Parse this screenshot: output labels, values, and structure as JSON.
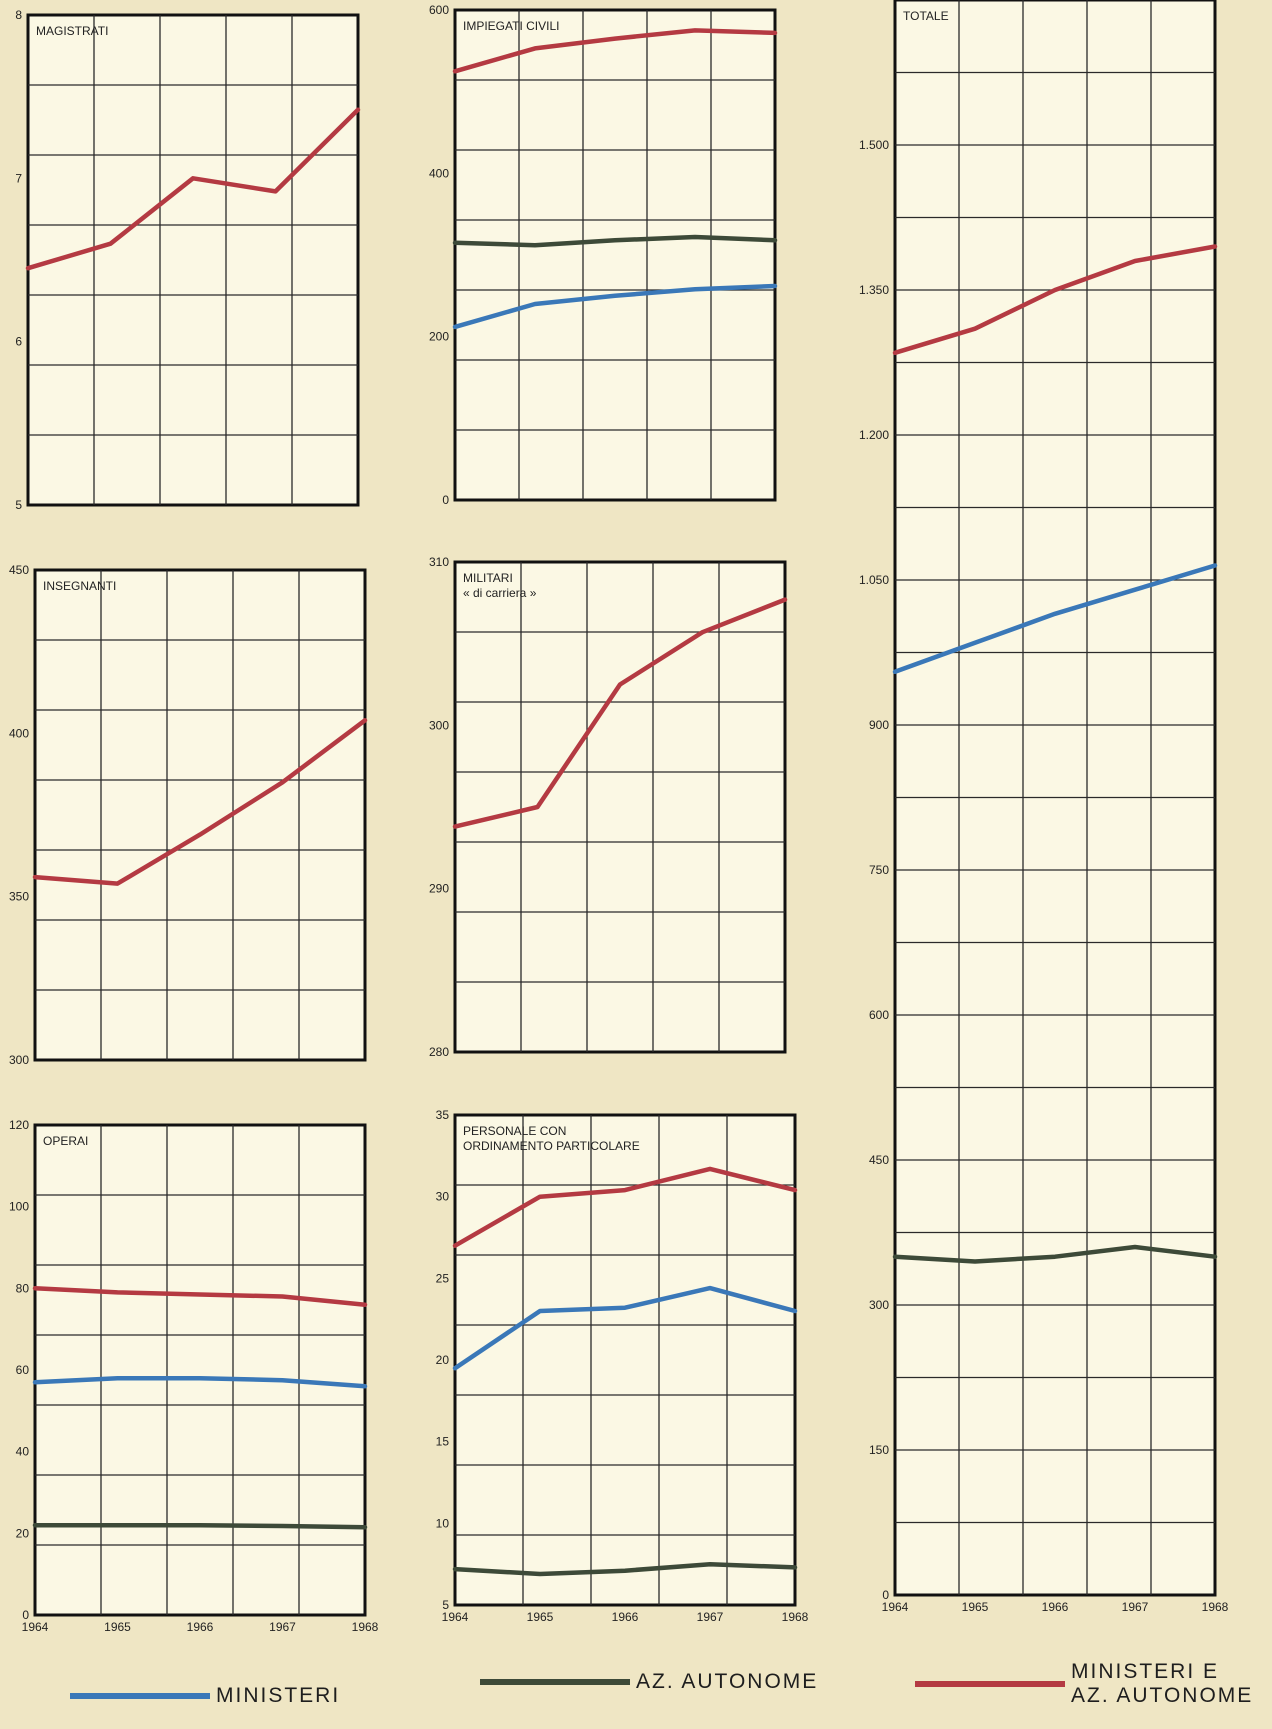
{
  "colors": {
    "background": "#efe6c4",
    "panel": "#fbf8e4",
    "grid": "#2a2a2a",
    "ministeri": "#3a78b8",
    "az_autonome": "#3d4a38",
    "ministeri_e_az_autonome": "#b43a42"
  },
  "legend": {
    "ministeri": "MINISTERI",
    "az_autonome": "AZ. AUTONOME",
    "ministeri_e_az_autonome": "MINISTERI E\nAZ. AUTONOME"
  },
  "chart_data": [
    {
      "id": "magistrati",
      "type": "line",
      "title": "MAGISTRATI",
      "x": [
        "1964",
        "1965",
        "1966",
        "1967",
        "1968"
      ],
      "ylim": [
        5,
        8
      ],
      "yticks": [
        5,
        6,
        7,
        8
      ],
      "ytick_labels": [
        "5",
        "6",
        "7",
        "8"
      ],
      "show_x_labels": false,
      "grid": true,
      "series": [
        {
          "key": "ministeri_e_az_autonome",
          "values": [
            6.45,
            6.6,
            7.0,
            6.92,
            7.42
          ]
        }
      ]
    },
    {
      "id": "impiegati_civili",
      "type": "line",
      "title": "IMPIEGATI CIVILI",
      "x": [
        "1964",
        "1965",
        "1966",
        "1967",
        "1968"
      ],
      "ylim": [
        0,
        600
      ],
      "yticks": [
        0,
        200,
        400,
        600
      ],
      "ytick_labels": [
        "0",
        "200",
        "400",
        "600"
      ],
      "show_x_labels": false,
      "grid": true,
      "series": [
        {
          "key": "ministeri",
          "values": [
            212,
            240,
            250,
            258,
            262
          ]
        },
        {
          "key": "az_autonome",
          "values": [
            315,
            312,
            318,
            322,
            318
          ]
        },
        {
          "key": "ministeri_e_az_autonome",
          "values": [
            525,
            553,
            565,
            575,
            572
          ]
        }
      ]
    },
    {
      "id": "totale",
      "type": "line",
      "title": "TOTALE",
      "x": [
        "1964",
        "1965",
        "1966",
        "1967",
        "1968"
      ],
      "ylim": [
        0,
        1650
      ],
      "yticks": [
        0,
        150,
        300,
        450,
        600,
        750,
        900,
        1050,
        1200,
        1350,
        1500
      ],
      "ytick_labels": [
        "0",
        "150",
        "300",
        "450",
        "600",
        "750",
        "900",
        "1.050",
        "1.200",
        "1.350",
        "1.500"
      ],
      "show_x_labels": true,
      "grid": true,
      "series": [
        {
          "key": "ministeri",
          "values": [
            955,
            985,
            1015,
            1040,
            1065
          ]
        },
        {
          "key": "az_autonome",
          "values": [
            350,
            345,
            350,
            360,
            350
          ]
        },
        {
          "key": "ministeri_e_az_autonome",
          "values": [
            1285,
            1310,
            1350,
            1380,
            1395
          ]
        }
      ]
    },
    {
      "id": "insegnanti",
      "type": "line",
      "title": "INSEGNANTI",
      "x": [
        "1964",
        "1965",
        "1966",
        "1967",
        "1968"
      ],
      "ylim": [
        300,
        450
      ],
      "yticks": [
        300,
        350,
        400,
        450
      ],
      "ytick_labels": [
        "300",
        "350",
        "400",
        "450"
      ],
      "show_x_labels": false,
      "grid": true,
      "series": [
        {
          "key": "ministeri_e_az_autonome",
          "values": [
            356,
            354,
            369,
            385,
            404
          ]
        }
      ]
    },
    {
      "id": "militari",
      "type": "line",
      "title": "MILITARI\n« di carriera »",
      "x": [
        "1964",
        "1965",
        "1966",
        "1967",
        "1968"
      ],
      "ylim": [
        280,
        310
      ],
      "yticks": [
        280,
        290,
        300,
        310
      ],
      "ytick_labels": [
        "280",
        "290",
        "300",
        "310"
      ],
      "show_x_labels": false,
      "grid": true,
      "series": [
        {
          "key": "ministeri_e_az_autonome",
          "values": [
            293.8,
            295.0,
            302.5,
            305.7,
            307.7
          ]
        }
      ]
    },
    {
      "id": "operai",
      "type": "line",
      "title": "OPERAI",
      "x": [
        "1964",
        "1965",
        "1966",
        "1967",
        "1968"
      ],
      "ylim": [
        0,
        120
      ],
      "yticks": [
        0,
        20,
        40,
        60,
        80,
        100,
        120
      ],
      "ytick_labels": [
        "0",
        "20",
        "40",
        "60",
        "80",
        "100",
        "120"
      ],
      "show_x_labels": true,
      "grid": true,
      "series": [
        {
          "key": "ministeri",
          "values": [
            57,
            58,
            58,
            57.5,
            56
          ]
        },
        {
          "key": "az_autonome",
          "values": [
            22,
            22,
            22,
            21.8,
            21.5
          ]
        },
        {
          "key": "ministeri_e_az_autonome",
          "values": [
            80,
            79,
            78.5,
            78,
            76
          ]
        }
      ]
    },
    {
      "id": "personale",
      "type": "line",
      "title": "PERSONALE CON\nORDINAMENTO PARTICOLARE",
      "x": [
        "1964",
        "1965",
        "1966",
        "1967",
        "1968"
      ],
      "ylim": [
        5,
        35
      ],
      "yticks": [
        5,
        10,
        15,
        20,
        25,
        30,
        35
      ],
      "ytick_labels": [
        "5",
        "10",
        "15",
        "20",
        "25",
        "30",
        "35"
      ],
      "show_x_labels": true,
      "grid": true,
      "series": [
        {
          "key": "ministeri",
          "values": [
            19.5,
            23.0,
            23.2,
            24.4,
            23.0
          ]
        },
        {
          "key": "az_autonome",
          "values": [
            7.2,
            6.9,
            7.1,
            7.5,
            7.3
          ]
        },
        {
          "key": "ministeri_e_az_autonome",
          "values": [
            27.0,
            30.0,
            30.4,
            31.7,
            30.4
          ]
        }
      ]
    }
  ]
}
